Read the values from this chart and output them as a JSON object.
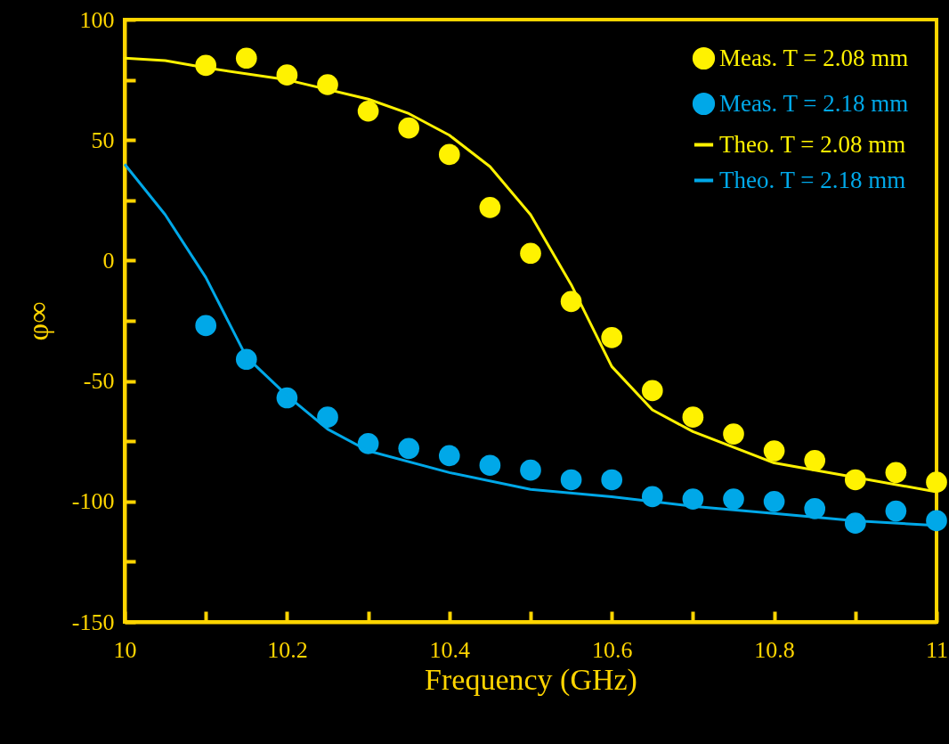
{
  "chart_data": {
    "type": "scatter",
    "xlabel": "Frequency (GHz)",
    "ylabel": "φ∞",
    "xlim": [
      10,
      11
    ],
    "ylim": [
      -150,
      100
    ],
    "xticks": [
      10,
      {
        "value": 10.1,
        "label": null
      },
      10.2,
      {
        "value": 10.3,
        "label": null
      },
      10.4,
      {
        "value": 10.5,
        "label": null
      },
      10.6,
      {
        "value": 10.7,
        "label": null
      },
      10.8,
      {
        "value": 10.9,
        "label": null
      },
      11
    ],
    "yticks": [
      -150,
      {
        "value": -125,
        "label": null
      },
      -100,
      {
        "value": -75,
        "label": null
      },
      -50,
      {
        "value": -25,
        "label": null
      },
      0,
      {
        "value": 25,
        "label": null
      },
      50,
      {
        "value": 75,
        "label": null
      },
      100
    ],
    "legend": "top right",
    "series": [
      {
        "name": "Meas. T = 2.08 mm",
        "marker": "circle",
        "color": "#fff200",
        "x": [
          10.1,
          10.15,
          10.2,
          10.25,
          10.3,
          10.35,
          10.4,
          10.45,
          10.5,
          10.55,
          10.6,
          10.65,
          10.7,
          10.75,
          10.8,
          10.85,
          10.9,
          10.95,
          11.0
        ],
        "values": [
          81,
          84,
          77,
          73,
          62,
          55,
          44,
          22,
          3,
          -17,
          -32,
          -54,
          -65,
          -72,
          -79,
          -83,
          -91,
          -88,
          -92
        ]
      },
      {
        "name": "Meas. T = 2.18 mm",
        "marker": "circle",
        "color": "#00a8e8",
        "x": [
          10.1,
          10.15,
          10.2,
          10.25,
          10.3,
          10.35,
          10.4,
          10.45,
          10.5,
          10.55,
          10.6,
          10.65,
          10.7,
          10.75,
          10.8,
          10.85,
          10.9,
          10.95,
          11.0
        ],
        "values": [
          -27,
          -41,
          -57,
          -65,
          -76,
          -78,
          -81,
          -85,
          -87,
          -91,
          -91,
          -98,
          -99,
          -99,
          -100,
          -103,
          -109,
          -104,
          -108
        ]
      },
      {
        "name": "Theo. T = 2.08 mm",
        "type": "line",
        "color": "#fff200",
        "x": [
          10.0,
          10.05,
          10.1,
          10.2,
          10.3,
          10.35,
          10.4,
          10.45,
          10.5,
          10.55,
          10.6,
          10.65,
          10.7,
          10.8,
          10.9,
          11.0
        ],
        "values": [
          84,
          83,
          80,
          75,
          67,
          61,
          52,
          39,
          19,
          -10,
          -44,
          -62,
          -71,
          -84,
          -90,
          -96
        ]
      },
      {
        "name": "Theo. T = 2.18 mm",
        "type": "line",
        "color": "#00a8e8",
        "x": [
          10.0,
          10.05,
          10.1,
          10.15,
          10.2,
          10.25,
          10.3,
          10.4,
          10.5,
          10.6,
          10.7,
          10.8,
          10.9,
          11.0
        ],
        "values": [
          40,
          19,
          -7,
          -40,
          -56,
          -70,
          -79,
          -88,
          -95,
          -98,
          -102,
          -105,
          -108,
          -110
        ]
      }
    ]
  }
}
